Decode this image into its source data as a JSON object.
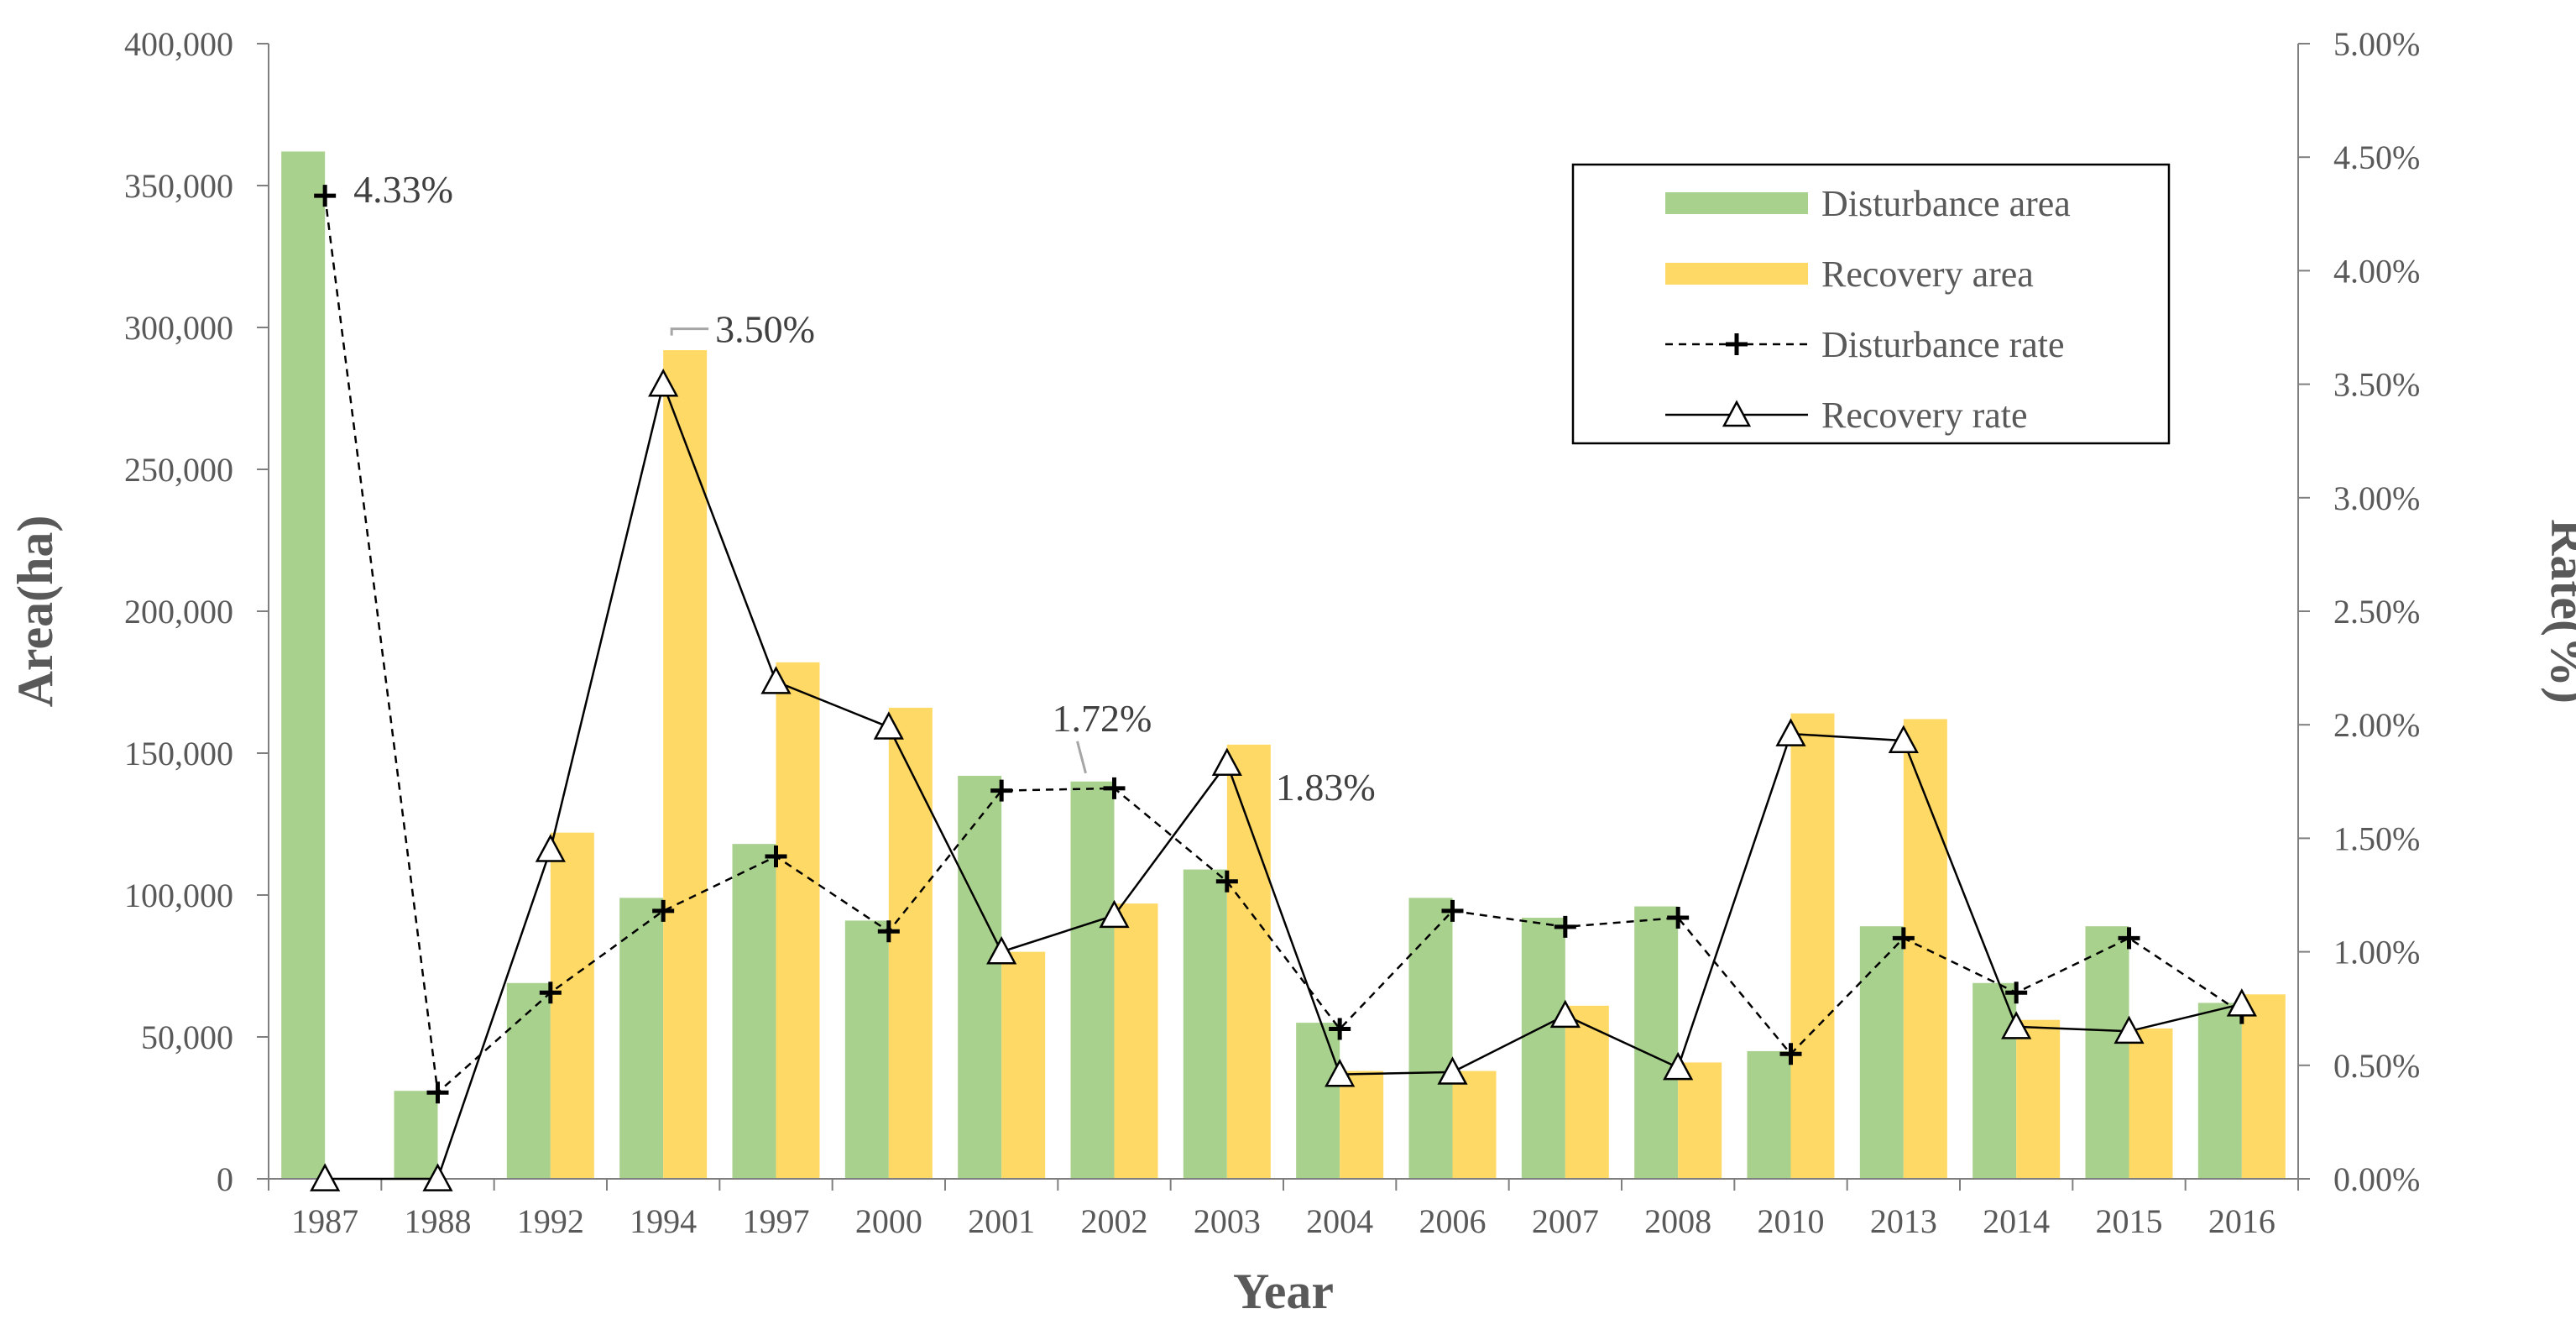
{
  "chart_data": {
    "type": "bar",
    "title": "",
    "xlabel": "Year",
    "ylabel": "Area(ha)",
    "y2label": "Rate(%)",
    "categories": [
      "1987",
      "1988",
      "1992",
      "1994",
      "1997",
      "2000",
      "2001",
      "2002",
      "2003",
      "2004",
      "2006",
      "2007",
      "2008",
      "2010",
      "2013",
      "2014",
      "2015",
      "2016"
    ],
    "ylim": [
      0,
      400000
    ],
    "y_ticks": [
      "0",
      "50,000",
      "100,000",
      "150,000",
      "200,000",
      "250,000",
      "300,000",
      "350,000",
      "400,000"
    ],
    "y2lim": [
      0,
      5
    ],
    "y2_ticks": [
      "0.00%",
      "0.50%",
      "1.00%",
      "1.50%",
      "2.00%",
      "2.50%",
      "3.00%",
      "3.50%",
      "4.00%",
      "4.50%",
      "5.00%"
    ],
    "series": [
      {
        "name": "Disturbance area",
        "kind": "bar",
        "axis": "left",
        "color": "#a9d18e",
        "values": [
          362000,
          31000,
          69000,
          99000,
          118000,
          91000,
          142000,
          140000,
          109000,
          55000,
          99000,
          92000,
          96000,
          45000,
          89000,
          69000,
          89000,
          62000
        ]
      },
      {
        "name": "Recovery area",
        "kind": "bar",
        "axis": "left",
        "color": "#ffd966",
        "values": [
          0,
          0,
          122000,
          292000,
          182000,
          166000,
          80000,
          97000,
          153000,
          38000,
          38000,
          61000,
          41000,
          164000,
          162000,
          56000,
          53000,
          65000
        ]
      },
      {
        "name": "Disturbance rate",
        "kind": "line",
        "axis": "right",
        "color": "#000000",
        "marker": "plus",
        "dash": true,
        "values": [
          4.33,
          0.38,
          0.82,
          1.18,
          1.42,
          1.09,
          1.71,
          1.72,
          1.31,
          0.66,
          1.18,
          1.11,
          1.15,
          0.55,
          1.06,
          0.82,
          1.06,
          0.73
        ]
      },
      {
        "name": "Recovery rate",
        "kind": "line",
        "axis": "right",
        "color": "#000000",
        "marker": "triangle",
        "dash": false,
        "values": [
          0.0,
          0.0,
          1.45,
          3.5,
          2.19,
          1.99,
          1.0,
          1.16,
          1.83,
          0.46,
          0.47,
          0.72,
          0.49,
          1.96,
          1.93,
          0.67,
          0.65,
          0.77
        ]
      }
    ],
    "annotations": [
      {
        "text": "4.33%",
        "series": "Disturbance rate",
        "category": "1987"
      },
      {
        "text": "3.50%",
        "series": "Recovery rate",
        "category": "1994"
      },
      {
        "text": "1.72%",
        "series": "Disturbance rate",
        "category": "2002"
      },
      {
        "text": "1.83%",
        "series": "Recovery rate",
        "category": "2003"
      }
    ],
    "legend_position": "top-right",
    "grid": false
  }
}
